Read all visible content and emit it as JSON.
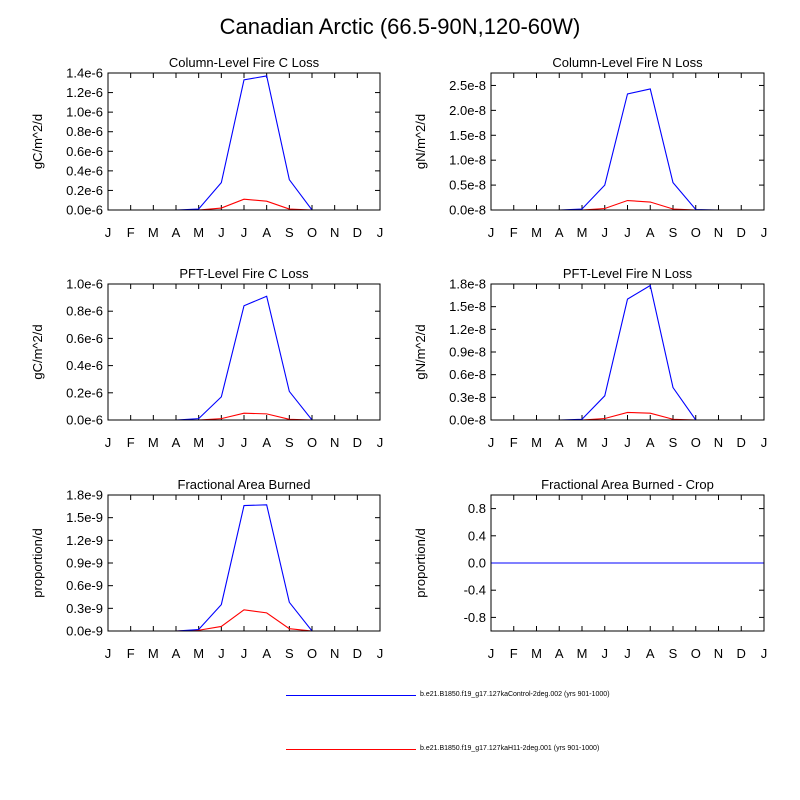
{
  "figure_title": "Canadian Arctic (66.5-90N,120-60W)",
  "months": [
    "J",
    "F",
    "M",
    "A",
    "M",
    "J",
    "J",
    "A",
    "S",
    "O",
    "N",
    "D",
    "J"
  ],
  "series_colors": {
    "control": "#0000ff",
    "experiment": "#ff0000"
  },
  "legend": [
    {
      "key": "control",
      "label": "b.e21.B1850.f19_g17.127kaControl-2deg.002 (yrs 901-1000)"
    },
    {
      "key": "experiment",
      "label": "b.e21.B1850.f19_g17.127kaH11-2deg.001 (yrs 901-1000)"
    }
  ],
  "chart_data": [
    {
      "type": "line",
      "title": "Column-Level Fire C Loss",
      "ylabel": "gC/m^2/d",
      "ylim": [
        0,
        1.4e-06
      ],
      "yticks": [
        0,
        2e-07,
        4e-07,
        6e-07,
        8e-07,
        1e-06,
        1.2e-06,
        1.4e-06
      ],
      "ytick_labels": [
        "0.0e-6",
        "0.2e-6",
        "0.4e-6",
        "0.6e-6",
        "0.8e-6",
        "1.0e-6",
        "1.2e-6",
        "1.4e-6"
      ],
      "series": [
        {
          "name": "control",
          "values": [
            0,
            0,
            0,
            0,
            1e-08,
            2.8e-07,
            1.33e-06,
            1.37e-06,
            3.1e-07,
            0,
            0,
            0,
            0
          ]
        },
        {
          "name": "experiment",
          "values": [
            0,
            0,
            0,
            0,
            0,
            2e-08,
            1.1e-07,
            9e-08,
            1e-08,
            0,
            0,
            0,
            0
          ]
        }
      ]
    },
    {
      "type": "line",
      "title": "Column-Level Fire N Loss",
      "ylabel": "gN/m^2/d",
      "ylim": [
        0,
        2.75e-08
      ],
      "yticks": [
        0,
        5e-09,
        1e-08,
        1.5e-08,
        2e-08,
        2.5e-08
      ],
      "ytick_labels": [
        "0.0e-8",
        "0.5e-8",
        "1.0e-8",
        "1.5e-8",
        "2.0e-8",
        "2.5e-8"
      ],
      "series": [
        {
          "name": "control",
          "values": [
            0,
            0,
            0,
            0,
            2e-10,
            5e-09,
            2.33e-08,
            2.43e-08,
            5.5e-09,
            1e-10,
            0,
            0,
            0
          ]
        },
        {
          "name": "experiment",
          "values": [
            0,
            0,
            0,
            0,
            0,
            3e-10,
            1.9e-09,
            1.6e-09,
            2e-10,
            0,
            0,
            0,
            0
          ]
        }
      ]
    },
    {
      "type": "line",
      "title": "PFT-Level Fire C Loss",
      "ylabel": "gC/m^2/d",
      "ylim": [
        0,
        1e-06
      ],
      "yticks": [
        0,
        2e-07,
        4e-07,
        6e-07,
        8e-07,
        1e-06
      ],
      "ytick_labels": [
        "0.0e-6",
        "0.2e-6",
        "0.4e-6",
        "0.6e-6",
        "0.8e-6",
        "1.0e-6"
      ],
      "series": [
        {
          "name": "control",
          "values": [
            0,
            0,
            0,
            0,
            1e-08,
            1.7e-07,
            8.4e-07,
            9.1e-07,
            2.1e-07,
            0,
            0,
            0,
            0
          ]
        },
        {
          "name": "experiment",
          "values": [
            0,
            0,
            0,
            0,
            0,
            1e-08,
            5e-08,
            4.5e-08,
            5e-09,
            0,
            0,
            0,
            0
          ]
        }
      ]
    },
    {
      "type": "line",
      "title": "PFT-Level Fire N Loss",
      "ylabel": "gN/m^2/d",
      "ylim": [
        0,
        1.8e-08
      ],
      "yticks": [
        0,
        3e-09,
        6e-09,
        9e-09,
        1.2e-08,
        1.5e-08,
        1.8e-08
      ],
      "ytick_labels": [
        "0.0e-8",
        "0.3e-8",
        "0.6e-8",
        "0.9e-8",
        "1.2e-8",
        "1.5e-8",
        "1.8e-8"
      ],
      "series": [
        {
          "name": "control",
          "values": [
            0,
            0,
            0,
            0,
            1e-10,
            3.2e-09,
            1.6e-08,
            1.78e-08,
            4.3e-09,
            0,
            0,
            0,
            0
          ]
        },
        {
          "name": "experiment",
          "values": [
            0,
            0,
            0,
            0,
            0,
            2e-10,
            1e-09,
            9e-10,
            1e-10,
            0,
            0,
            0,
            0
          ]
        }
      ]
    },
    {
      "type": "line",
      "title": "Fractional Area Burned",
      "ylabel": "proportion/d",
      "ylim": [
        0,
        1.8e-09
      ],
      "yticks": [
        0,
        3e-10,
        6e-10,
        9e-10,
        1.2e-09,
        1.5e-09,
        1.8e-09
      ],
      "ytick_labels": [
        "0.0e-9",
        "0.3e-9",
        "0.6e-9",
        "0.9e-9",
        "1.2e-9",
        "1.5e-9",
        "1.8e-9"
      ],
      "series": [
        {
          "name": "control",
          "values": [
            0,
            0,
            0,
            0,
            2e-11,
            3.5e-10,
            1.66e-09,
            1.67e-09,
            3.8e-10,
            0,
            0,
            0,
            0
          ]
        },
        {
          "name": "experiment",
          "values": [
            0,
            0,
            0,
            0,
            1e-11,
            6e-11,
            2.8e-10,
            2.4e-10,
            3e-11,
            0,
            0,
            0,
            0
          ]
        }
      ]
    },
    {
      "type": "line",
      "title": "Fractional Area Burned - Crop",
      "ylabel": "proportion/d",
      "ylim": [
        -1.0,
        1.0
      ],
      "yticks": [
        -0.8,
        -0.4,
        0.0,
        0.4,
        0.8
      ],
      "ytick_labels": [
        "-0.8",
        "-0.4",
        "0.0",
        "0.4",
        "0.8"
      ],
      "series": [
        {
          "name": "control",
          "values": [
            0,
            0,
            0,
            0,
            0,
            0,
            0,
            0,
            0,
            0,
            0,
            0,
            0
          ]
        },
        {
          "name": "experiment",
          "values": [
            0,
            0,
            0,
            0,
            0,
            0,
            0,
            0,
            0,
            0,
            0,
            0,
            0
          ]
        }
      ]
    }
  ]
}
